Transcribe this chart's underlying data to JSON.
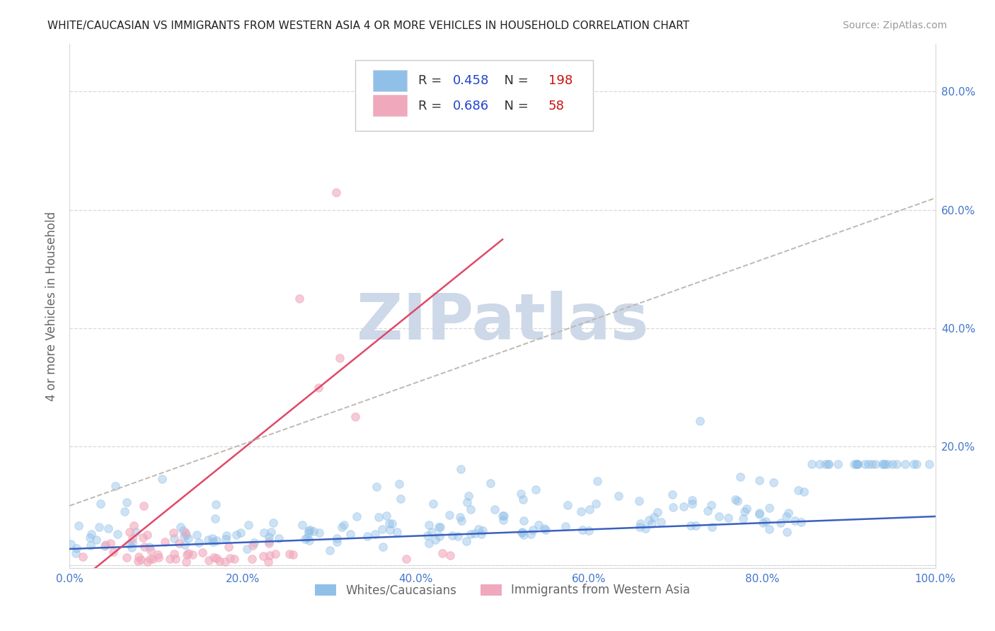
{
  "title": "WHITE/CAUCASIAN VS IMMIGRANTS FROM WESTERN ASIA 4 OR MORE VEHICLES IN HOUSEHOLD CORRELATION CHART",
  "source": "Source: ZipAtlas.com",
  "ylabel": "4 or more Vehicles in Household",
  "R_blue": 0.458,
  "N_blue": 198,
  "R_pink": 0.686,
  "N_pink": 58,
  "blue_scatter_color": "#90c0e8",
  "pink_scatter_color": "#f0a8bc",
  "blue_line_color": "#3a60c0",
  "pink_line_color": "#e04868",
  "gray_dash_color": "#c0b8b0",
  "legend_R_color": "#2244cc",
  "legend_N_color": "#cc1111",
  "title_color": "#222222",
  "source_color": "#999999",
  "axis_color": "#4477cc",
  "grid_color": "#d8d8d8",
  "watermark_color": "#cdd8e8",
  "background_color": "#ffffff",
  "xlim": [
    0.0,
    1.0
  ],
  "ylim": [
    -0.005,
    0.88
  ],
  "xticks": [
    0.0,
    0.2,
    0.4,
    0.6,
    0.8,
    1.0
  ],
  "yticks": [
    0.0,
    0.2,
    0.4,
    0.6,
    0.8
  ],
  "xticklabels": [
    "0.0%",
    "20.0%",
    "40.0%",
    "60.0%",
    "80.0%",
    "100.0%"
  ],
  "yticklabels": [
    "",
    "20.0%",
    "40.0%",
    "60.0%",
    "80.0%"
  ]
}
